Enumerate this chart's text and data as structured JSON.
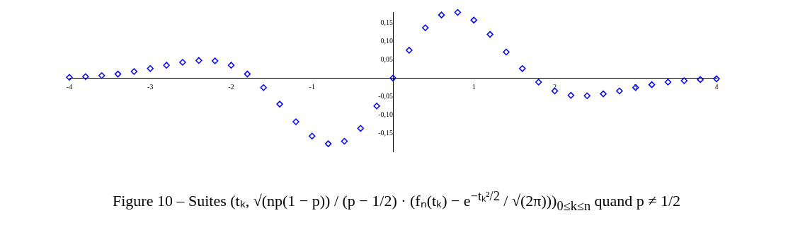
{
  "chart_data": {
    "type": "scatter",
    "color": "#0000ff",
    "marker": "diamond",
    "grid": false,
    "x": [
      -4,
      -3.8,
      -3.6,
      -3.4,
      -3.2,
      -3,
      -2.8,
      -2.6,
      -2.4,
      -2.2,
      -2,
      -1.8,
      -1.6,
      -1.4,
      -1.2,
      -1,
      -0.8,
      -0.6,
      -0.4,
      -0.2,
      0,
      0.2,
      0.4,
      0.6,
      0.8,
      1,
      1.2,
      1.4,
      1.6,
      1.8,
      2,
      2.2,
      2.4,
      2.6,
      2.8,
      3,
      3.2,
      3.4,
      3.6,
      3.8,
      4
    ],
    "values": [
      0.002,
      0.004,
      0.007,
      0.011,
      0.018,
      0.026,
      0.035,
      0.043,
      0.048,
      0.047,
      0.035,
      0.011,
      -0.026,
      -0.071,
      -0.119,
      -0.158,
      -0.179,
      -0.172,
      -0.137,
      -0.076,
      0,
      0.076,
      0.137,
      0.172,
      0.179,
      0.158,
      0.119,
      0.071,
      0.026,
      -0.011,
      -0.035,
      -0.047,
      -0.048,
      -0.043,
      -0.035,
      -0.026,
      -0.018,
      -0.011,
      -0.007,
      -0.004,
      -0.002
    ],
    "xlim": [
      -4,
      4
    ],
    "xticks": [
      -4,
      -3,
      -2,
      -1,
      1,
      2,
      3,
      4
    ],
    "ylim": [
      -0.2,
      0.18
    ],
    "yticks": [
      {
        "value": -0.15,
        "label": "-0,15"
      },
      {
        "value": -0.1,
        "label": "-0,10"
      },
      {
        "value": -0.05,
        "label": "-0,05"
      },
      {
        "value": 0.05,
        "label": "0,05"
      },
      {
        "value": 0.1,
        "label": "0,10"
      },
      {
        "value": 0.15,
        "label": "0,15"
      }
    ],
    "annotations": [
      "Figure 10 – Suites (tₖ, √(np(1 − p)) / (p − 1/2) · (fₙ(tₖ) − e$^{−tₖ²/2}$ / √(2π)))$_{0≤k≤n}$ quand p ≠ 1/2"
    ]
  }
}
